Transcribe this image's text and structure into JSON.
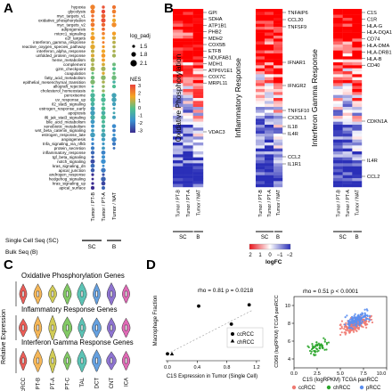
{
  "panels": {
    "A": "A",
    "B": "B",
    "C": "C",
    "D": "D"
  },
  "colors": {
    "black_text": "#000000",
    "red_highlight": "#e41a1c",
    "blue_highlight": "#1f3fd6",
    "nes_low": "#3b2b8f",
    "nes_mid": "#4fc08d",
    "nes_high": "#e8423b",
    "heat_high": "#e8141c",
    "heat_mid": "#ffffff",
    "heat_low": "#2a2fb8",
    "ccrcc": "#ef7a72",
    "chrcc": "#2aa52a",
    "prcc": "#5b8ef0"
  },
  "panel_a": {
    "pathways": [
      {
        "name": "hypoxia",
        "color": "black"
      },
      {
        "name": "glycolysis",
        "color": "black"
      },
      {
        "name": "myc_targets_v1",
        "color": "black"
      },
      {
        "name": "oxidative_phosphorylation",
        "color": "red"
      },
      {
        "name": "myc_targets_v2",
        "color": "black"
      },
      {
        "name": "adipogenesis",
        "color": "black"
      },
      {
        "name": "mtorc1_signaling",
        "color": "black"
      },
      {
        "name": "e2f_targets",
        "color": "black"
      },
      {
        "name": "interferon_gamma_response",
        "color": "blue"
      },
      {
        "name": "reactive_oxygen_species_pathway",
        "color": "black"
      },
      {
        "name": "interferon_alpha_response",
        "color": "blue"
      },
      {
        "name": "unfolded_protein_response",
        "color": "black"
      },
      {
        "name": "heme_metabolism",
        "color": "black"
      },
      {
        "name": "complement",
        "color": "black"
      },
      {
        "name": "g2m_checkpoint",
        "color": "black"
      },
      {
        "name": "coagulation",
        "color": "black"
      },
      {
        "name": "fatty_acid_metabolism",
        "color": "red"
      },
      {
        "name": "epithelial_mesenchymal_transition",
        "color": "black"
      },
      {
        "name": "allograft_rejection",
        "color": "blue"
      },
      {
        "name": "cholesterol_homeostasis",
        "color": "black"
      },
      {
        "name": "peroxisome",
        "color": "black"
      },
      {
        "name": "uv_response_up",
        "color": "black"
      },
      {
        "name": "il2_stat5_signaling",
        "color": "blue"
      },
      {
        "name": "estrogen_response_early",
        "color": "black"
      },
      {
        "name": "apoptosis",
        "color": "black"
      },
      {
        "name": "il6_jak_stat3_signaling",
        "color": "blue"
      },
      {
        "name": "bile_acid_metabolism",
        "color": "black"
      },
      {
        "name": "xenobiotic_metabolism",
        "color": "black"
      },
      {
        "name": "wnt_beta_catenin_signaling",
        "color": "black"
      },
      {
        "name": "estrogen_response_late",
        "color": "black"
      },
      {
        "name": "angiogenesis",
        "color": "black"
      },
      {
        "name": "tnfa_signaling_via_nfkb",
        "color": "blue"
      },
      {
        "name": "protein_secretion",
        "color": "black"
      },
      {
        "name": "inflammatory_response",
        "color": "blue"
      },
      {
        "name": "tgf_beta_signaling",
        "color": "black"
      },
      {
        "name": "notch_signaling",
        "color": "black"
      },
      {
        "name": "kras_signaling_dn",
        "color": "black"
      },
      {
        "name": "apical_junction",
        "color": "black"
      },
      {
        "name": "androgen_response",
        "color": "black"
      },
      {
        "name": "hedgehog_signaling",
        "color": "black"
      },
      {
        "name": "kras_signaling_up",
        "color": "black"
      },
      {
        "name": "apical_surface",
        "color": "black"
      }
    ],
    "columns": [
      "Tumor / PT-B",
      "Tumor / PT-A",
      "Tumor / NAT"
    ],
    "groups": [
      {
        "label": "SC"
      },
      {
        "label": "B"
      }
    ],
    "legend_size_title": "log_padj",
    "legend_size_values": [
      "1.5",
      "1.8",
      "2.1"
    ],
    "legend_color_title": "NES",
    "legend_color_ticks": [
      "3",
      "2",
      "1",
      "0",
      "-1",
      "-2",
      "-3"
    ],
    "footer_sc": "Single Cell Seq (SC)",
    "footer_b": "Bulk Seq (B)"
  },
  "panel_b": {
    "heatmaps": [
      {
        "title": "Oxidative Phosphorylation",
        "genes": [
          "GPI",
          "SDHA",
          "ATP1B1",
          "PHB2",
          "MDH2",
          "COX5B",
          "ETFB",
          "NDUFAB1",
          "MDH1",
          "ATP6V1E1",
          "COX7C",
          "MRPL11",
          "VDAC3"
        ],
        "col_labels": [
          "Tumor / PT-B",
          "Tumor / PT-A",
          "Tumor / NAT"
        ],
        "group_labels": [
          "SC",
          "B"
        ]
      },
      {
        "title": "Inflammatory Response",
        "genes": [
          "TNFAIP6",
          "CCL20",
          "TNFSF9",
          "IFNAR1",
          "IFNGR2",
          "TNFSF10",
          "CX3CL1",
          "IL18",
          "IL4R",
          "CCL2",
          "IL1R1"
        ],
        "col_labels": [
          "Tumor / PT-B",
          "Tumor / PT-A",
          "Tumor / NAT"
        ],
        "group_labels": [
          "SC",
          "B"
        ]
      },
      {
        "title": "Interferon Gamma Response",
        "genes": [
          "C1S",
          "C1R",
          "HLA-G",
          "HLA-DQA1",
          "CD74",
          "HLA-DMA",
          "HLA-DRB1",
          "HLA-B",
          "CD40",
          "CDKN1A",
          "IL4R",
          "CCL2"
        ],
        "col_labels": [
          "Tumor / PT-B",
          "Tumor / PT-A",
          "Tumor / NAT"
        ],
        "group_labels": [
          "SC",
          "B"
        ]
      }
    ],
    "legend_ticks": [
      "2",
      "1",
      "0",
      "−1",
      "−2"
    ],
    "legend_title": "logFC"
  },
  "panel_c": {
    "titles": [
      "Oxidative Phosphorylation Genes",
      "Inflammatory Response Genes",
      "Interferon Gamma Response Genes"
    ],
    "ylabel": "Relative Expression",
    "categories": [
      "ccRCC",
      "PT-B",
      "PT-A",
      "PT-C",
      "TAL",
      "DCT",
      "CNT",
      "ICA"
    ],
    "violin_colors": [
      "#e8423b",
      "#f2a93b",
      "#c9c33a",
      "#6cbf4a",
      "#3fb8a8",
      "#4a8fd9",
      "#7a5cc8",
      "#d94fa8"
    ]
  },
  "chart_data": [
    {
      "type": "scatter",
      "annotation": "rho = 0.81 p = 0.0218",
      "xlabel": "C1S Expression in Tumor (Single Cell)",
      "ylabel": "Macrophage Fraction",
      "xlim": [
        0,
        1.2
      ],
      "ylim": [
        -0.02,
        0.45
      ],
      "xticks": [
        "0.0",
        "0.4",
        "0.8",
        "1.2"
      ],
      "series": [
        {
          "name": "ccRCC",
          "shape": "circle",
          "points": [
            [
              0.0,
              0.02
            ],
            [
              0.42,
              0.39
            ],
            [
              0.86,
              0.25
            ],
            [
              0.93,
              0.12
            ],
            [
              1.1,
              0.4
            ]
          ]
        },
        {
          "name": "chRCC",
          "shape": "triangle",
          "points": [
            [
              0.06,
              0.02
            ]
          ]
        }
      ]
    },
    {
      "type": "scatter",
      "annotation": "rho = 0.51 p < 0.0001",
      "xlabel": "C1S (logRPKM) TCGA panRCC",
      "ylabel": "CD68 (logRPKM) TCGA panRCC",
      "xlim": [
        0,
        10
      ],
      "ylim": [
        3,
        11
      ],
      "xticks": [
        "0.0",
        "2.5",
        "5.0",
        "7.5",
        "10.0"
      ],
      "yticks": [
        "4",
        "6",
        "8",
        "10"
      ],
      "series": [
        {
          "name": "ccRCC",
          "color": "#ef7a72"
        },
        {
          "name": "chRCC",
          "color": "#2aa52a"
        },
        {
          "name": "pRCC",
          "color": "#5b8ef0"
        }
      ]
    }
  ]
}
